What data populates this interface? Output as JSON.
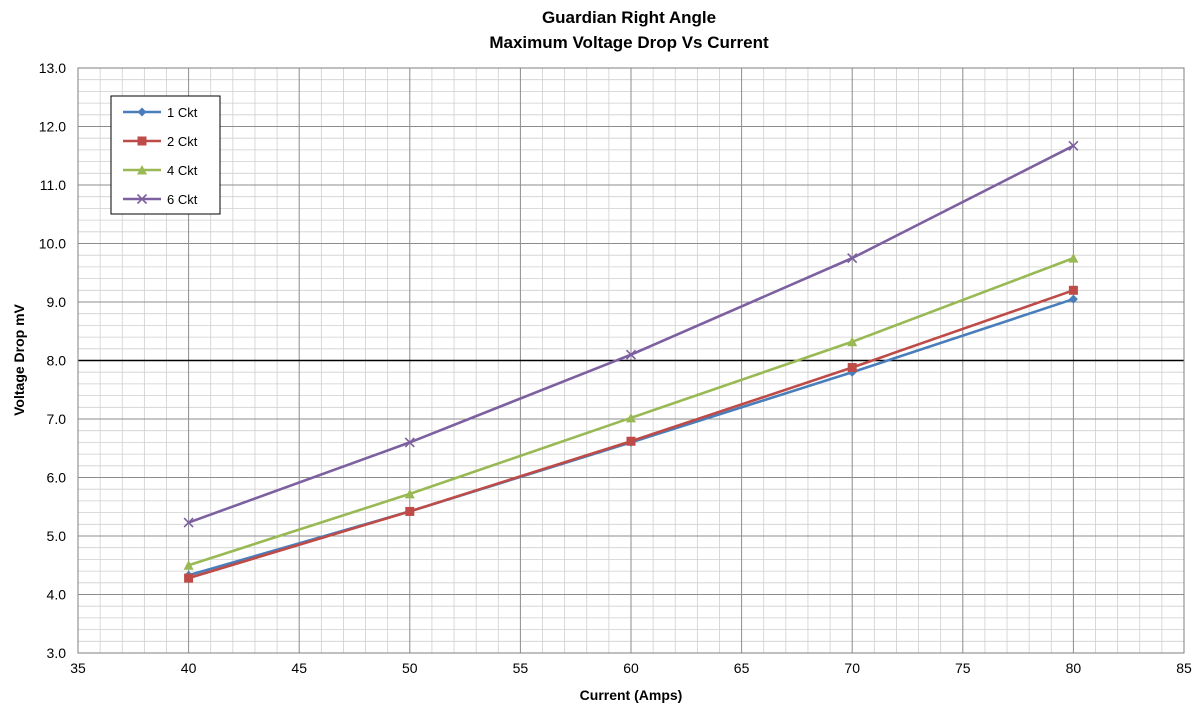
{
  "chart_data": {
    "type": "line",
    "title": [
      "Guardian  Right Angle",
      "Maximum Voltage Drop Vs Current"
    ],
    "xlabel": "Current (Amps)",
    "ylabel": "Voltage Drop mV",
    "xlim": [
      35,
      85
    ],
    "ylim": [
      3.0,
      13.0
    ],
    "xticks": [
      "35",
      "40",
      "45",
      "50",
      "55",
      "60",
      "65",
      "70",
      "75",
      "80",
      "85"
    ],
    "yticks": [
      "3.0",
      "4.0",
      "5.0",
      "6.0",
      "7.0",
      "8.0",
      "9.0",
      "10.0",
      "11.0",
      "12.0",
      "13.0"
    ],
    "grid": true,
    "minor_grid": true,
    "reference_line": 8.0,
    "legend_position": "top-left",
    "x": [
      40,
      50,
      60,
      70,
      80
    ],
    "series": [
      {
        "name": "1 Ckt",
        "values": [
          4.33,
          5.42,
          6.6,
          7.8,
          9.05
        ],
        "color": "#4a7ebb",
        "marker": "diamond"
      },
      {
        "name": "2 Ckt",
        "values": [
          4.28,
          5.42,
          6.62,
          7.88,
          9.2
        ],
        "color": "#be4b48",
        "marker": "square"
      },
      {
        "name": "4 Ckt",
        "values": [
          4.5,
          5.72,
          7.02,
          8.32,
          9.75
        ],
        "color": "#98b954",
        "marker": "triangle"
      },
      {
        "name": "6 Ckt",
        "values": [
          5.23,
          6.6,
          8.1,
          9.75,
          11.67
        ],
        "color": "#7d60a0",
        "marker": "x"
      }
    ]
  }
}
